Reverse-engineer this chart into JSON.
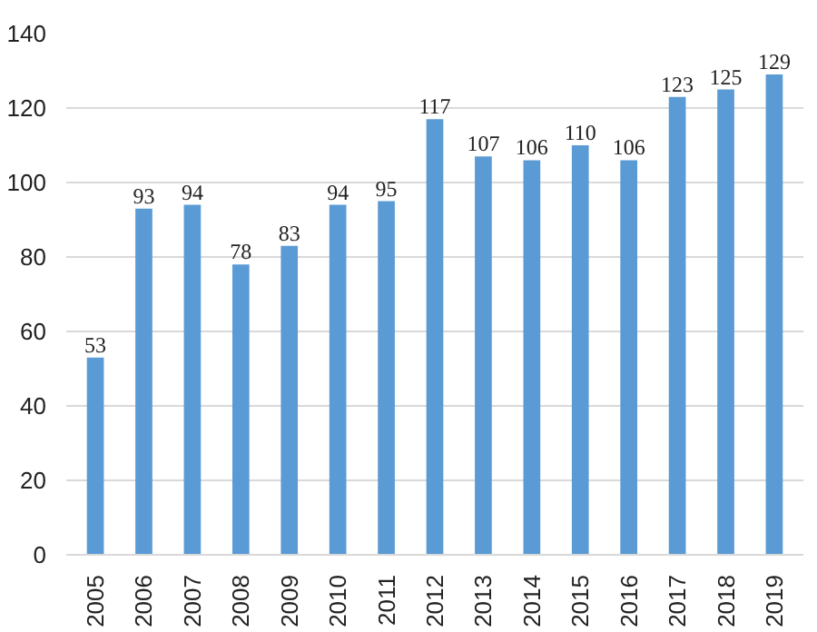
{
  "chart_data": {
    "type": "bar",
    "categories": [
      "2005",
      "2006",
      "2007",
      "2008",
      "2009",
      "2010",
      "2011",
      "2012",
      "2013",
      "2014",
      "2015",
      "2016",
      "2017",
      "2018",
      "2019"
    ],
    "values": [
      53,
      93,
      94,
      78,
      83,
      94,
      95,
      117,
      107,
      106,
      110,
      106,
      123,
      125,
      129
    ],
    "color": "#5b9bd5",
    "ylim": [
      0,
      140
    ],
    "yticks": [
      0,
      20,
      40,
      60,
      80,
      100,
      120,
      140
    ],
    "grid": "y",
    "data_labels": true
  }
}
